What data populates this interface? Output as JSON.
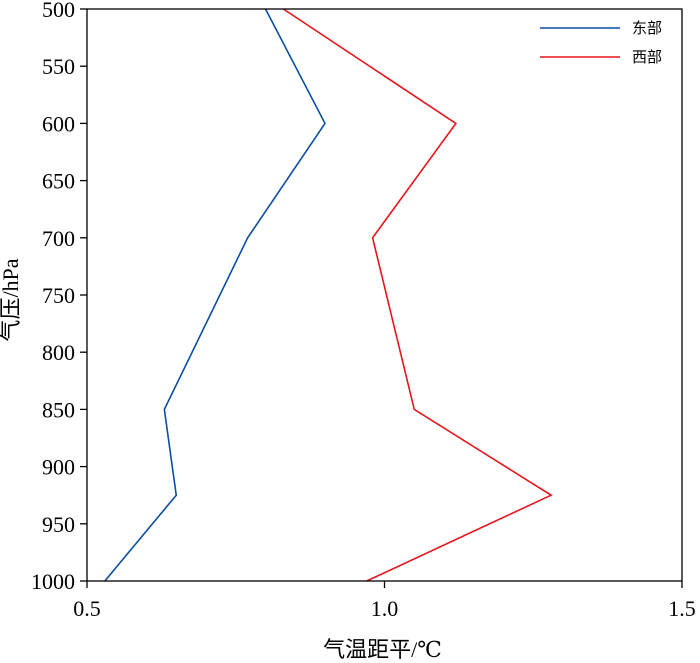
{
  "chart_data": {
    "type": "line",
    "xlabel": "气温距平/℃",
    "ylabel": "气压/hPa",
    "xlim": [
      0.5,
      1.5
    ],
    "ylim": [
      1000,
      500
    ],
    "y_inverted": true,
    "xticks": [
      "0.5",
      "1.0",
      "1.5"
    ],
    "yticks": [
      "500",
      "550",
      "600",
      "650",
      "700",
      "750",
      "800",
      "850",
      "900",
      "950",
      "1000"
    ],
    "grid": false,
    "legend_position": "top-right",
    "series": [
      {
        "name": "东部",
        "color": "#0b4ea2",
        "x": [
          0.53,
          0.65,
          0.63,
          0.77,
          0.9,
          0.8
        ],
        "y": [
          1000,
          925,
          850,
          700,
          600,
          500
        ]
      },
      {
        "name": "西部",
        "color": "#e8141c",
        "x": [
          0.97,
          1.28,
          1.05,
          0.98,
          1.12,
          0.83
        ],
        "y": [
          1000,
          925,
          850,
          700,
          600,
          500
        ]
      }
    ]
  }
}
